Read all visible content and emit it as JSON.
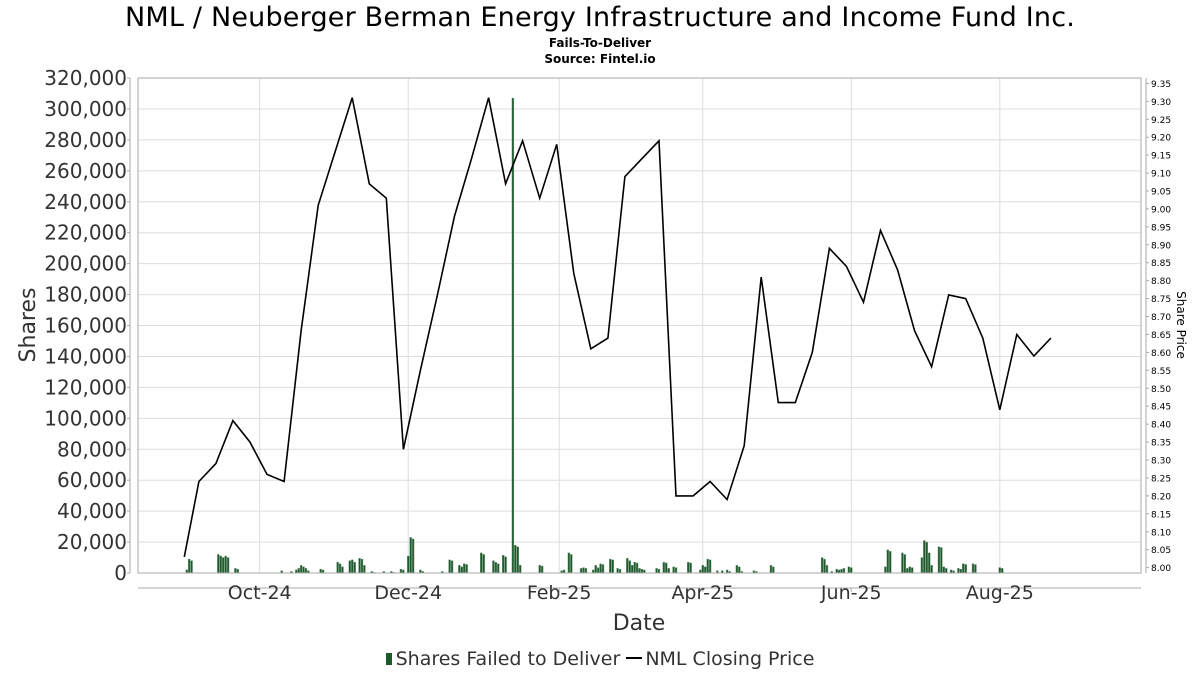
{
  "chart_data": {
    "type": "bar",
    "title": "NML / Neuberger Berman Energy Infrastructure and Income Fund Inc.",
    "subtitle": "Fails-To-Deliver",
    "source": "Source: Fintel.io",
    "xlabel": "Date",
    "ylabel": "Shares",
    "y2label": "Share Price",
    "ylim": [
      0,
      320000
    ],
    "y2lim": [
      7.985,
      9.365
    ],
    "yticks": [
      "0",
      "20,000",
      "40,000",
      "60,000",
      "80,000",
      "100,000",
      "120,000",
      "140,000",
      "160,000",
      "180,000",
      "200,000",
      "220,000",
      "240,000",
      "260,000",
      "280,000",
      "300,000",
      "320,000"
    ],
    "y2ticks": [
      "8.00",
      "8.05",
      "8.10",
      "8.15",
      "8.20",
      "8.25",
      "8.30",
      "8.35",
      "8.40",
      "8.45",
      "8.50",
      "8.55",
      "8.60",
      "8.65",
      "8.70",
      "8.75",
      "8.80",
      "8.85",
      "8.90",
      "8.95",
      "9.00",
      "9.05",
      "9.10",
      "9.15",
      "9.20",
      "9.25",
      "9.30",
      "9.35"
    ],
    "xticks": [
      {
        "label": "Oct-24",
        "date": "2024-10-01"
      },
      {
        "label": "Dec-24",
        "date": "2024-12-01"
      },
      {
        "label": "Feb-25",
        "date": "2025-02-01"
      },
      {
        "label": "Apr-25",
        "date": "2025-04-01"
      },
      {
        "label": "Jun-25",
        "date": "2025-06-01"
      },
      {
        "label": "Aug-25",
        "date": "2025-08-01"
      }
    ],
    "xrange": [
      "2024-08-12",
      "2025-09-28"
    ],
    "grid": true,
    "legend_position": "bottom",
    "series": [
      {
        "name": "Shares Failed to Deliver",
        "kind": "bar",
        "color": "#1c5a2c",
        "points": [
          [
            "2024-09-01",
            2000
          ],
          [
            "2024-09-02",
            9000
          ],
          [
            "2024-09-03",
            8000
          ],
          [
            "2024-09-14",
            12000
          ],
          [
            "2024-09-15",
            11000
          ],
          [
            "2024-09-16",
            10000
          ],
          [
            "2024-09-17",
            11000
          ],
          [
            "2024-09-18",
            10000
          ],
          [
            "2024-09-21",
            3000
          ],
          [
            "2024-09-22",
            2500
          ],
          [
            "2024-10-10",
            1500
          ],
          [
            "2024-10-14",
            1000
          ],
          [
            "2024-10-16",
            2000
          ],
          [
            "2024-10-17",
            3000
          ],
          [
            "2024-10-18",
            5000
          ],
          [
            "2024-10-19",
            4000
          ],
          [
            "2024-10-20",
            3000
          ],
          [
            "2024-10-21",
            1500
          ],
          [
            "2024-10-26",
            2500
          ],
          [
            "2024-10-27",
            2000
          ],
          [
            "2024-11-02",
            7000
          ],
          [
            "2024-11-03",
            6000
          ],
          [
            "2024-11-04",
            4000
          ],
          [
            "2024-11-07",
            8000
          ],
          [
            "2024-11-08",
            8500
          ],
          [
            "2024-11-09",
            7000
          ],
          [
            "2024-11-11",
            9500
          ],
          [
            "2024-11-12",
            9000
          ],
          [
            "2024-11-13",
            5000
          ],
          [
            "2024-11-16",
            1000
          ],
          [
            "2024-11-17",
            500
          ],
          [
            "2024-11-21",
            1000
          ],
          [
            "2024-11-24",
            1000
          ],
          [
            "2024-11-25",
            500
          ],
          [
            "2024-11-28",
            2500
          ],
          [
            "2024-11-29",
            2000
          ],
          [
            "2024-12-01",
            11000
          ],
          [
            "2024-12-02",
            23000
          ],
          [
            "2024-12-03",
            22000
          ],
          [
            "2024-12-06",
            2000
          ],
          [
            "2024-12-07",
            1000
          ],
          [
            "2024-12-15",
            1000
          ],
          [
            "2024-12-18",
            8500
          ],
          [
            "2024-12-19",
            8000
          ],
          [
            "2024-12-22",
            5000
          ],
          [
            "2024-12-23",
            4000
          ],
          [
            "2024-12-24",
            6000
          ],
          [
            "2024-12-25",
            5500
          ],
          [
            "2024-12-31",
            13000
          ],
          [
            "2025-01-01",
            12000
          ],
          [
            "2025-01-05",
            8000
          ],
          [
            "2025-01-06",
            7000
          ],
          [
            "2025-01-07",
            6000
          ],
          [
            "2025-01-09",
            11500
          ],
          [
            "2025-01-10",
            10500
          ],
          [
            "2025-01-13",
            307000
          ],
          [
            "2025-01-14",
            18000
          ],
          [
            "2025-01-15",
            17000
          ],
          [
            "2025-01-16",
            5000
          ],
          [
            "2025-01-24",
            5000
          ],
          [
            "2025-01-25",
            4500
          ],
          [
            "2025-02-02",
            1500
          ],
          [
            "2025-02-03",
            2000
          ],
          [
            "2025-02-05",
            13000
          ],
          [
            "2025-02-06",
            12000
          ],
          [
            "2025-02-10",
            3000
          ],
          [
            "2025-02-11",
            3500
          ],
          [
            "2025-02-12",
            3000
          ],
          [
            "2025-02-15",
            2000
          ],
          [
            "2025-02-16",
            5000
          ],
          [
            "2025-02-17",
            3500
          ],
          [
            "2025-02-18",
            6000
          ],
          [
            "2025-02-19",
            5500
          ],
          [
            "2025-02-22",
            9000
          ],
          [
            "2025-02-23",
            8500
          ],
          [
            "2025-02-25",
            3000
          ],
          [
            "2025-02-26",
            2500
          ],
          [
            "2025-03-01",
            9500
          ],
          [
            "2025-03-02",
            8000
          ],
          [
            "2025-03-03",
            5000
          ],
          [
            "2025-03-04",
            7000
          ],
          [
            "2025-03-05",
            6500
          ],
          [
            "2025-03-06",
            3000
          ],
          [
            "2025-03-07",
            2500
          ],
          [
            "2025-03-08",
            2000
          ],
          [
            "2025-03-13",
            3000
          ],
          [
            "2025-03-14",
            2500
          ],
          [
            "2025-03-16",
            7000
          ],
          [
            "2025-03-17",
            6500
          ],
          [
            "2025-03-18",
            3000
          ],
          [
            "2025-03-20",
            4000
          ],
          [
            "2025-03-21",
            3500
          ],
          [
            "2025-03-26",
            7000
          ],
          [
            "2025-03-27",
            6500
          ],
          [
            "2025-03-31",
            2000
          ],
          [
            "2025-04-01",
            5000
          ],
          [
            "2025-04-02",
            4000
          ],
          [
            "2025-04-03",
            9000
          ],
          [
            "2025-04-04",
            8500
          ],
          [
            "2025-04-07",
            1500
          ],
          [
            "2025-04-09",
            1500
          ],
          [
            "2025-04-11",
            2000
          ],
          [
            "2025-04-12",
            1000
          ],
          [
            "2025-04-15",
            5000
          ],
          [
            "2025-04-16",
            4000
          ],
          [
            "2025-04-17",
            1000
          ],
          [
            "2025-04-22",
            1500
          ],
          [
            "2025-04-23",
            1000
          ],
          [
            "2025-04-29",
            5000
          ],
          [
            "2025-04-30",
            4000
          ],
          [
            "2025-05-20",
            10000
          ],
          [
            "2025-05-21",
            9000
          ],
          [
            "2025-05-22",
            5000
          ],
          [
            "2025-05-24",
            1000
          ],
          [
            "2025-05-26",
            2500
          ],
          [
            "2025-05-27",
            2000
          ],
          [
            "2025-05-28",
            2500
          ],
          [
            "2025-05-29",
            3000
          ],
          [
            "2025-05-31",
            4000
          ],
          [
            "2025-06-01",
            3500
          ],
          [
            "2025-06-15",
            4000
          ],
          [
            "2025-06-16",
            15000
          ],
          [
            "2025-06-17",
            14000
          ],
          [
            "2025-06-22",
            13000
          ],
          [
            "2025-06-23",
            12000
          ],
          [
            "2025-06-24",
            3000
          ],
          [
            "2025-06-25",
            4000
          ],
          [
            "2025-06-26",
            3500
          ],
          [
            "2025-06-30",
            10000
          ],
          [
            "2025-07-01",
            21000
          ],
          [
            "2025-07-02",
            20000
          ],
          [
            "2025-07-03",
            13000
          ],
          [
            "2025-07-04",
            5000
          ],
          [
            "2025-07-07",
            17000
          ],
          [
            "2025-07-08",
            16500
          ],
          [
            "2025-07-09",
            4000
          ],
          [
            "2025-07-10",
            3000
          ],
          [
            "2025-07-12",
            2000
          ],
          [
            "2025-07-13",
            1500
          ],
          [
            "2025-07-15",
            3000
          ],
          [
            "2025-07-16",
            2500
          ],
          [
            "2025-07-17",
            6000
          ],
          [
            "2025-07-18",
            5500
          ],
          [
            "2025-07-21",
            6000
          ],
          [
            "2025-07-22",
            5500
          ],
          [
            "2025-08-01",
            3500
          ],
          [
            "2025-08-02",
            3000
          ]
        ]
      },
      {
        "name": "NML Closing Price",
        "kind": "line",
        "color": "#000000",
        "points": [
          [
            "2024-08-31",
            8.03
          ],
          [
            "2024-09-06",
            8.24
          ],
          [
            "2024-09-13",
            8.29
          ],
          [
            "2024-09-20",
            8.41
          ],
          [
            "2024-09-27",
            8.35
          ],
          [
            "2024-10-04",
            8.26
          ],
          [
            "2024-10-11",
            8.24
          ],
          [
            "2024-10-18",
            8.66
          ],
          [
            "2024-10-25",
            9.01
          ],
          [
            "2024-11-01",
            9.16
          ],
          [
            "2024-11-08",
            9.31
          ],
          [
            "2024-11-15",
            9.07
          ],
          [
            "2024-11-22",
            9.03
          ],
          [
            "2024-11-29",
            8.33
          ],
          [
            "2024-12-06",
            8.55
          ],
          [
            "2024-12-13",
            8.76
          ],
          [
            "2024-12-20",
            8.98
          ],
          [
            "2024-12-27",
            9.14
          ],
          [
            "2025-01-03",
            9.31
          ],
          [
            "2025-01-10",
            9.07
          ],
          [
            "2025-01-17",
            9.19
          ],
          [
            "2025-01-24",
            9.03
          ],
          [
            "2025-01-31",
            9.18
          ],
          [
            "2025-02-07",
            8.82
          ],
          [
            "2025-02-14",
            8.61
          ],
          [
            "2025-02-21",
            8.64
          ],
          [
            "2025-02-28",
            9.09
          ],
          [
            "2025-03-07",
            9.14
          ],
          [
            "2025-03-14",
            9.19
          ],
          [
            "2025-03-21",
            8.2
          ],
          [
            "2025-03-28",
            8.2
          ],
          [
            "2025-04-04",
            8.24
          ],
          [
            "2025-04-11",
            8.19
          ],
          [
            "2025-04-18",
            8.34
          ],
          [
            "2025-04-25",
            8.81
          ],
          [
            "2025-05-02",
            8.46
          ],
          [
            "2025-05-09",
            8.46
          ],
          [
            "2025-05-16",
            8.6
          ],
          [
            "2025-05-23",
            8.89
          ],
          [
            "2025-05-30",
            8.84
          ],
          [
            "2025-06-06",
            8.74
          ],
          [
            "2025-06-13",
            8.94
          ],
          [
            "2025-06-20",
            8.83
          ],
          [
            "2025-06-27",
            8.66
          ],
          [
            "2025-07-04",
            8.56
          ],
          [
            "2025-07-11",
            8.76
          ],
          [
            "2025-07-18",
            8.75
          ],
          [
            "2025-07-25",
            8.64
          ],
          [
            "2025-08-01",
            8.44
          ],
          [
            "2025-08-08",
            8.65
          ],
          [
            "2025-08-15",
            8.59
          ],
          [
            "2025-08-22",
            8.64
          ]
        ]
      }
    ]
  }
}
